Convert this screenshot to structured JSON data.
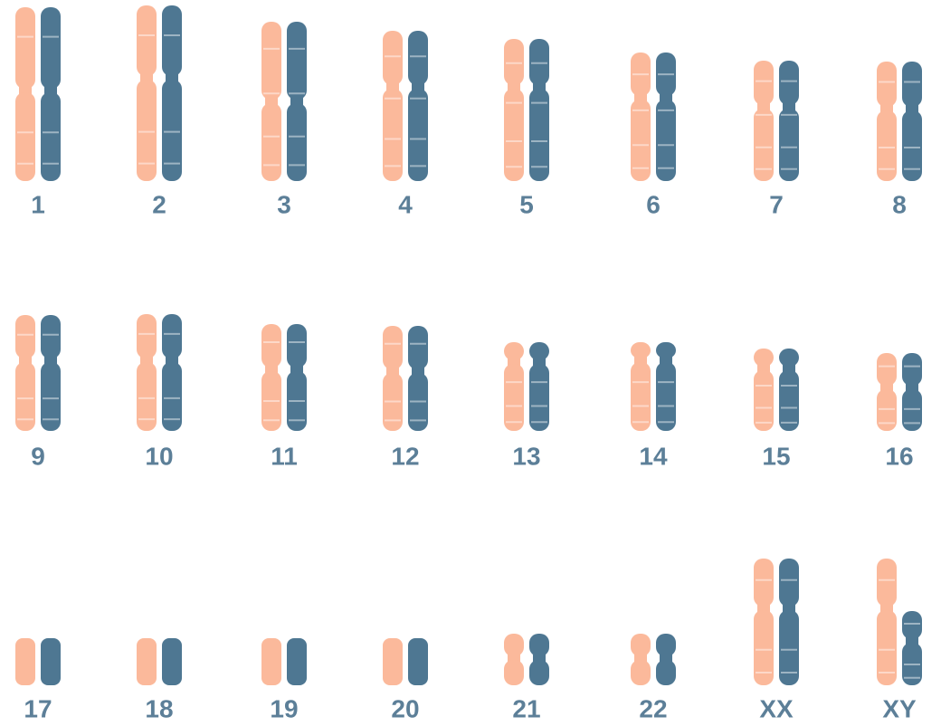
{
  "chromosomes": [
    {
      "label": "1"
    },
    {
      "label": "2"
    },
    {
      "label": "3"
    },
    {
      "label": "4"
    },
    {
      "label": "5"
    },
    {
      "label": "6"
    },
    {
      "label": "7"
    },
    {
      "label": "8"
    },
    {
      "label": "9"
    },
    {
      "label": "10"
    },
    {
      "label": "11"
    },
    {
      "label": "12"
    },
    {
      "label": "13"
    },
    {
      "label": "14"
    },
    {
      "label": "15"
    },
    {
      "label": "16"
    },
    {
      "label": "17"
    },
    {
      "label": "18"
    },
    {
      "label": "19"
    },
    {
      "label": "20"
    },
    {
      "label": "21"
    },
    {
      "label": "22"
    },
    {
      "label": "XX"
    },
    {
      "label": "XY"
    }
  ]
}
